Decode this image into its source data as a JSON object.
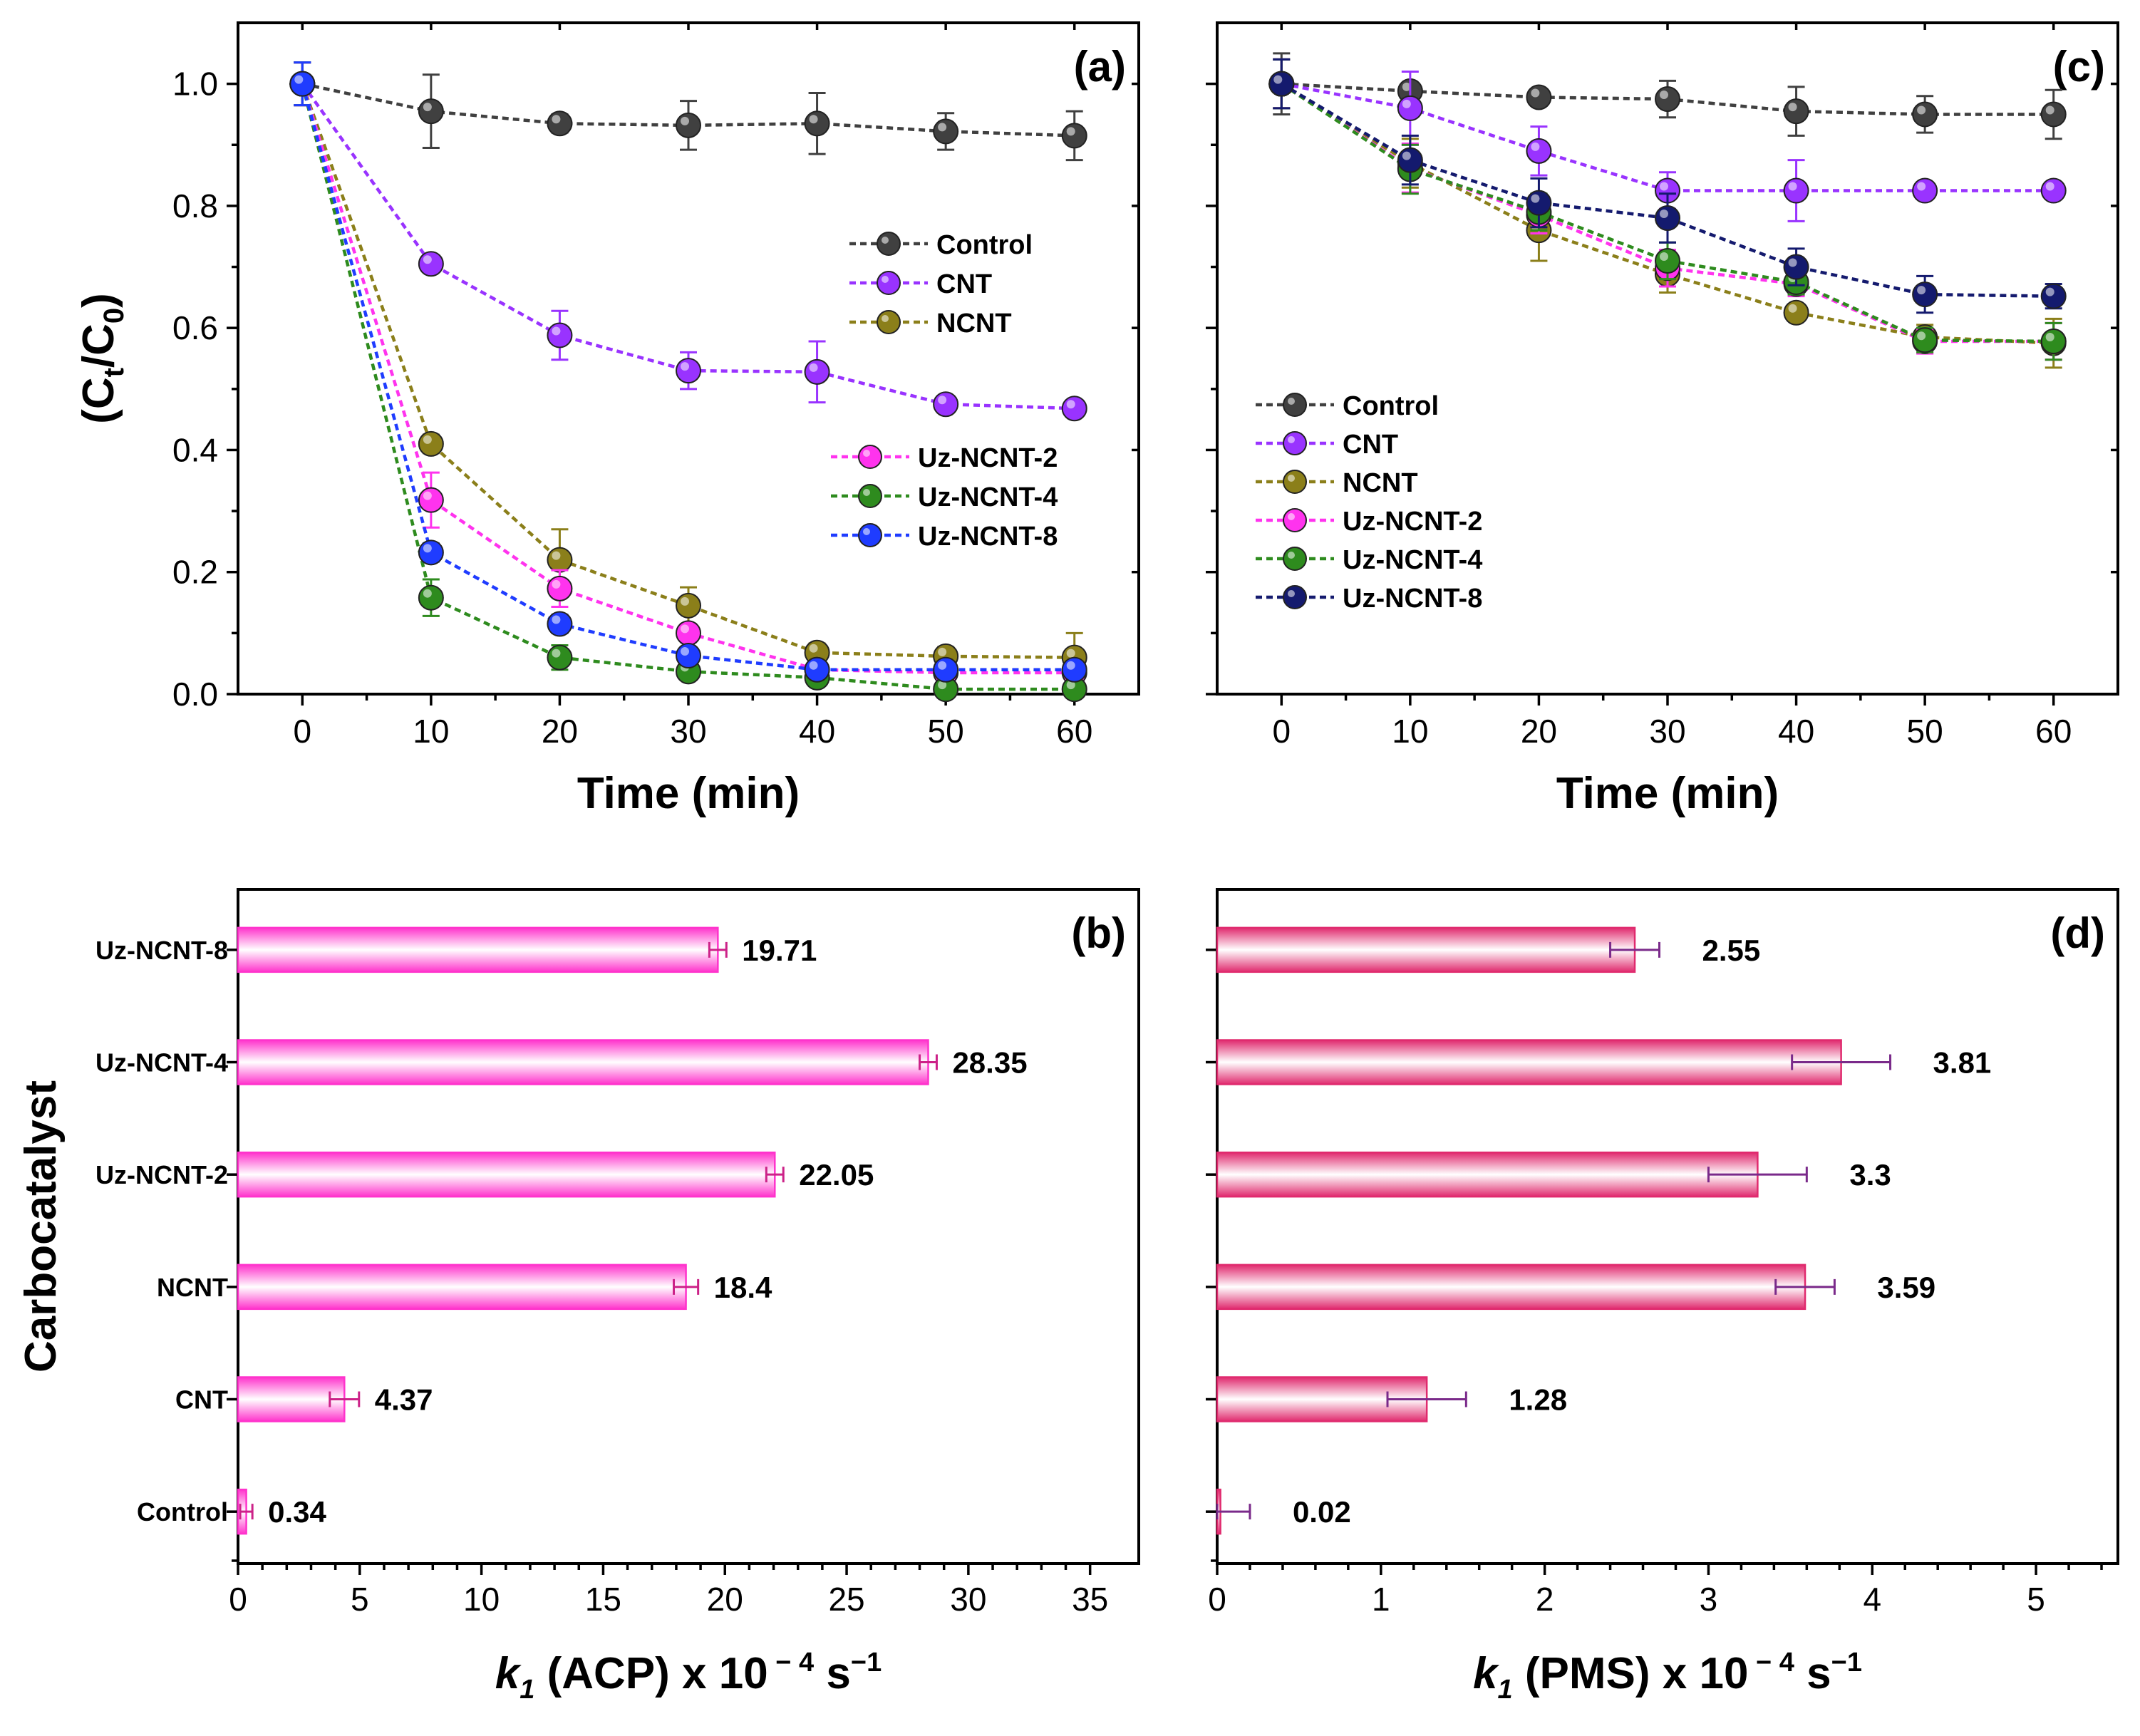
{
  "chart_data": [
    {
      "panel": "(a)",
      "type": "line",
      "xlabel": "Time (min)",
      "ylabel": "(Ct/C0)",
      "ylabel_parts": {
        "open": "(C",
        "sub1": "t",
        "mid": "/C",
        "sub2": "0",
        "close": ")"
      },
      "x": [
        0,
        10,
        20,
        30,
        40,
        50,
        60
      ],
      "xlim": [
        -5,
        65
      ],
      "ylim": [
        0,
        1.1
      ],
      "xticks": [
        "0",
        "10",
        "20",
        "30",
        "40",
        "50",
        "60"
      ],
      "yticks": [
        "0.0",
        "0.2",
        "0.4",
        "0.6",
        "0.8",
        "1.0"
      ],
      "legend_position": "right",
      "series": [
        {
          "name": "Control",
          "color": "#404040",
          "values": [
            1.0,
            0.955,
            0.935,
            0.932,
            0.935,
            0.922,
            0.915
          ],
          "errors": [
            0.035,
            0.06,
            0.015,
            0.04,
            0.05,
            0.03,
            0.04
          ]
        },
        {
          "name": "CNT",
          "color": "#9933ff",
          "values": [
            1.0,
            0.705,
            0.588,
            0.53,
            0.528,
            0.475,
            0.468
          ],
          "errors": [
            0.035,
            0.01,
            0.04,
            0.03,
            0.05,
            0.01,
            0.01
          ]
        },
        {
          "name": "NCNT",
          "color": "#8b7f1a",
          "values": [
            1.0,
            0.41,
            0.22,
            0.145,
            0.068,
            0.062,
            0.06
          ],
          "errors": [
            0.035,
            0.015,
            0.05,
            0.03,
            0.015,
            0.015,
            0.04
          ]
        },
        {
          "name": "Uz-NCNT-2",
          "color": "#ff33ee",
          "values": [
            1.0,
            0.318,
            0.173,
            0.1,
            0.04,
            0.035,
            0.035
          ],
          "errors": [
            0.035,
            0.045,
            0.03,
            0.015,
            0.01,
            0.01,
            0.01
          ]
        },
        {
          "name": "Uz-NCNT-4",
          "color": "#2e8b1e",
          "values": [
            1.0,
            0.158,
            0.06,
            0.037,
            0.027,
            0.008,
            0.008
          ],
          "errors": [
            0.035,
            0.03,
            0.02,
            0.01,
            0.01,
            0.005,
            0.005
          ]
        },
        {
          "name": "Uz-NCNT-8",
          "color": "#1f3cff",
          "values": [
            1.0,
            0.232,
            0.115,
            0.063,
            0.04,
            0.04,
            0.04
          ],
          "errors": [
            0.035,
            0.015,
            0.015,
            0.01,
            0.01,
            0.01,
            0.01
          ]
        }
      ]
    },
    {
      "panel": "(c)",
      "type": "line",
      "xlabel": "Time (min)",
      "ylabel": "",
      "x": [
        0,
        10,
        20,
        30,
        40,
        50,
        60
      ],
      "xlim": [
        -5,
        65
      ],
      "ylim": [
        0,
        1.1
      ],
      "xticks": [
        "0",
        "10",
        "20",
        "30",
        "40",
        "50",
        "60"
      ],
      "legend_position": "left",
      "series": [
        {
          "name": "Control",
          "color": "#404040",
          "values": [
            1.0,
            0.988,
            0.978,
            0.975,
            0.955,
            0.95,
            0.95
          ],
          "errors": [
            0.05,
            0.01,
            0.01,
            0.03,
            0.04,
            0.03,
            0.04
          ]
        },
        {
          "name": "CNT",
          "color": "#9933ff",
          "values": [
            1.0,
            0.96,
            0.89,
            0.825,
            0.825,
            0.825,
            0.825
          ],
          "errors": [
            0.04,
            0.06,
            0.04,
            0.03,
            0.05,
            0.01,
            0.01
          ]
        },
        {
          "name": "NCNT",
          "color": "#8b7f1a",
          "values": [
            1.0,
            0.87,
            0.76,
            0.688,
            0.625,
            0.585,
            0.575
          ],
          "errors": [
            0.04,
            0.04,
            0.05,
            0.03,
            0.01,
            0.02,
            0.04
          ]
        },
        {
          "name": "Uz-NCNT-2",
          "color": "#ff33ee",
          "values": [
            1.0,
            0.862,
            0.785,
            0.698,
            0.672,
            0.578,
            0.578
          ],
          "errors": [
            0.04,
            0.04,
            0.03,
            0.03,
            0.02,
            0.02,
            0.03
          ]
        },
        {
          "name": "Uz-NCNT-4",
          "color": "#2e8b1e",
          "values": [
            1.0,
            0.86,
            0.79,
            0.71,
            0.675,
            0.58,
            0.578
          ],
          "errors": [
            0.04,
            0.04,
            0.03,
            0.03,
            0.02,
            0.02,
            0.03
          ]
        },
        {
          "name": "Uz-NCNT-8",
          "color": "#141a6e",
          "values": [
            1.0,
            0.875,
            0.805,
            0.78,
            0.7,
            0.655,
            0.652
          ],
          "errors": [
            0.04,
            0.04,
            0.04,
            0.04,
            0.03,
            0.03,
            0.02
          ]
        }
      ]
    },
    {
      "panel": "(b)",
      "type": "bar",
      "orientation": "horizontal",
      "xlabel": "k1 (ACP) x 10 − 4 s−1",
      "xlabel_parts": {
        "k": "k",
        "sub": "1",
        "rest": " (ACP) x 10",
        "sup": " − 4",
        "unit": " s",
        "unitsup": "−1"
      },
      "ylabel": "Carbocatalyst",
      "categories": [
        "Uz-NCNT-8",
        "Uz-NCNT-4",
        "Uz-NCNT-2",
        "NCNT",
        "CNT",
        "Control"
      ],
      "values": [
        19.71,
        28.35,
        22.05,
        18.4,
        4.37,
        0.34
      ],
      "value_labels": [
        "19.71",
        "28.35",
        "22.05",
        "18.4",
        "4.37",
        "0.34"
      ],
      "errors": [
        0.35,
        0.35,
        0.35,
        0.5,
        0.6,
        0.25
      ],
      "xlim": [
        0,
        37
      ],
      "xticks": [
        "0",
        "5",
        "10",
        "15",
        "20",
        "25",
        "30",
        "35"
      ],
      "bar_color": "#ff33cc",
      "error_color": "#cc2288"
    },
    {
      "panel": "(d)",
      "type": "bar",
      "orientation": "horizontal",
      "xlabel": "k1 (PMS) x 10 − 4 s−1",
      "xlabel_parts": {
        "k": "k",
        "sub": "1",
        "rest": " (PMS) x 10",
        "sup": " − 4",
        "unit": " s",
        "unitsup": "−1"
      },
      "ylabel": "",
      "categories": [
        "Uz-NCNT-8",
        "Uz-NCNT-4",
        "Uz-NCNT-2",
        "NCNT",
        "CNT",
        "Control"
      ],
      "values": [
        2.55,
        3.81,
        3.3,
        3.59,
        1.28,
        0.02
      ],
      "value_labels": [
        "2.55",
        "3.81",
        "3.3",
        "3.59",
        "1.28",
        "0.02"
      ],
      "errors": [
        0.15,
        0.3,
        0.3,
        0.18,
        0.24,
        0.18
      ],
      "xlim": [
        0,
        5.5
      ],
      "xticks": [
        "0",
        "1",
        "2",
        "3",
        "4",
        "5"
      ],
      "bar_color": "#e02a6e",
      "error_color": "#7a2a8a"
    }
  ]
}
